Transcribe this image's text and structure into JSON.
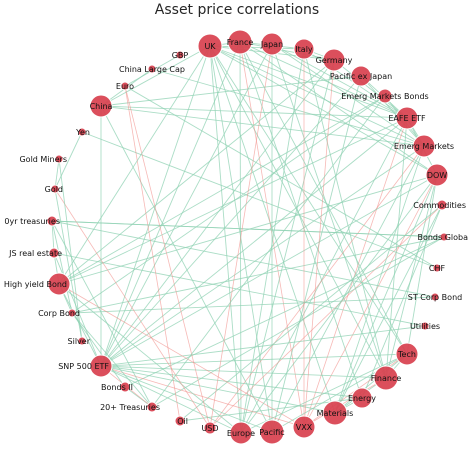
{
  "figure": {
    "title": "Asset price correlations",
    "colors": {
      "node": "#d9414f",
      "positive_edge": "#8fd1b3",
      "negative_edge": "#f08a85",
      "label": "#111111"
    }
  },
  "nodes": [
    {
      "id": "uk",
      "label": "UK"
    },
    {
      "id": "france",
      "label": "France"
    },
    {
      "id": "japan",
      "label": "Japan"
    },
    {
      "id": "italy",
      "label": "Italy"
    },
    {
      "id": "germany",
      "label": "Germany"
    },
    {
      "id": "pacific_ex_japan",
      "label": "Pacific ex Japan"
    },
    {
      "id": "emerg_markets_bonds",
      "label": "Emerg Markets Bonds"
    },
    {
      "id": "eafe_etf",
      "label": "EAFE ETF"
    },
    {
      "id": "emerg_markets",
      "label": "Emerg Markets"
    },
    {
      "id": "dow",
      "label": "DOW"
    },
    {
      "id": "commodities",
      "label": "Commodities"
    },
    {
      "id": "bonds_global",
      "label": "Bonds Globa"
    },
    {
      "id": "chf",
      "label": "CHF"
    },
    {
      "id": "st_corp_bond",
      "label": "ST Corp Bond"
    },
    {
      "id": "utilities",
      "label": "Utilities"
    },
    {
      "id": "tech",
      "label": "Tech"
    },
    {
      "id": "finance",
      "label": "Finance"
    },
    {
      "id": "energy",
      "label": "Energy"
    },
    {
      "id": "materials",
      "label": "Materials"
    },
    {
      "id": "vxx",
      "label": "VXX"
    },
    {
      "id": "pacific",
      "label": "Pacific"
    },
    {
      "id": "europe",
      "label": "Europe"
    },
    {
      "id": "usd",
      "label": "USD"
    },
    {
      "id": "oil",
      "label": "Oil"
    },
    {
      "id": "treasuries_20",
      "label": "20+ Treasuries"
    },
    {
      "id": "bonds_ii",
      "label": "Bonds II"
    },
    {
      "id": "snp500",
      "label": "SNP 500 ETF"
    },
    {
      "id": "silver",
      "label": "Silver"
    },
    {
      "id": "corp_bond",
      "label": "Corp Bond"
    },
    {
      "id": "high_yield",
      "label": "High yield Bond"
    },
    {
      "id": "us_real_estate",
      "label": "JS real estate"
    },
    {
      "id": "treasuries_10",
      "label": "0yr treasuries"
    },
    {
      "id": "gold",
      "label": "Gold"
    },
    {
      "id": "gold_miners",
      "label": "Gold Miners"
    },
    {
      "id": "yen",
      "label": "Yen"
    },
    {
      "id": "china",
      "label": "China"
    },
    {
      "id": "euro",
      "label": "Euro"
    },
    {
      "id": "china_large_cap",
      "label": "China Large Cap"
    },
    {
      "id": "gbp",
      "label": "GBP"
    }
  ],
  "edges": [
    [
      "uk",
      "france",
      "pos"
    ],
    [
      "uk",
      "germany",
      "pos"
    ],
    [
      "uk",
      "italy",
      "pos"
    ],
    [
      "uk",
      "eafe_etf",
      "pos"
    ],
    [
      "uk",
      "europe",
      "pos"
    ],
    [
      "uk",
      "snp500",
      "pos"
    ],
    [
      "uk",
      "dow",
      "pos"
    ],
    [
      "uk",
      "emerg_markets",
      "pos"
    ],
    [
      "uk",
      "pacific",
      "pos"
    ],
    [
      "uk",
      "finance",
      "pos"
    ],
    [
      "uk",
      "tech",
      "pos"
    ],
    [
      "uk",
      "materials",
      "pos"
    ],
    [
      "france",
      "germany",
      "pos"
    ],
    [
      "france",
      "italy",
      "pos"
    ],
    [
      "france",
      "eafe_etf",
      "pos"
    ],
    [
      "france",
      "europe",
      "pos"
    ],
    [
      "france",
      "snp500",
      "pos"
    ],
    [
      "france",
      "dow",
      "pos"
    ],
    [
      "france",
      "energy",
      "pos"
    ],
    [
      "france",
      "vxx",
      "neg"
    ],
    [
      "japan",
      "pacific",
      "pos"
    ],
    [
      "japan",
      "eafe_etf",
      "pos"
    ],
    [
      "japan",
      "snp500",
      "pos"
    ],
    [
      "japan",
      "emerg_markets",
      "pos"
    ],
    [
      "japan",
      "finance",
      "pos"
    ],
    [
      "italy",
      "germany",
      "pos"
    ],
    [
      "italy",
      "europe",
      "pos"
    ],
    [
      "italy",
      "eafe_etf",
      "pos"
    ],
    [
      "italy",
      "finance",
      "pos"
    ],
    [
      "germany",
      "europe",
      "pos"
    ],
    [
      "germany",
      "eafe_etf",
      "pos"
    ],
    [
      "germany",
      "snp500",
      "pos"
    ],
    [
      "germany",
      "high_yield",
      "pos"
    ],
    [
      "pacific_ex_japan",
      "emerg_markets",
      "pos"
    ],
    [
      "pacific_ex_japan",
      "pacific",
      "pos"
    ],
    [
      "pacific_ex_japan",
      "china",
      "pos"
    ],
    [
      "pacific_ex_japan",
      "eafe_etf",
      "pos"
    ],
    [
      "emerg_markets_bonds",
      "high_yield",
      "pos"
    ],
    [
      "emerg_markets_bonds",
      "emerg_markets",
      "pos"
    ],
    [
      "emerg_markets_bonds",
      "corp_bond",
      "pos"
    ],
    [
      "eafe_etf",
      "europe",
      "pos"
    ],
    [
      "eafe_etf",
      "snp500",
      "pos"
    ],
    [
      "eafe_etf",
      "dow",
      "pos"
    ],
    [
      "eafe_etf",
      "china",
      "pos"
    ],
    [
      "eafe_etf",
      "emerg_markets",
      "pos"
    ],
    [
      "eafe_etf",
      "high_yield",
      "pos"
    ],
    [
      "eafe_etf",
      "vxx",
      "neg"
    ],
    [
      "emerg_markets",
      "china",
      "pos"
    ],
    [
      "emerg_markets",
      "snp500",
      "pos"
    ],
    [
      "emerg_markets",
      "china_large_cap",
      "pos"
    ],
    [
      "emerg_markets",
      "pacific",
      "pos"
    ],
    [
      "emerg_markets",
      "usd",
      "neg"
    ],
    [
      "dow",
      "snp500",
      "pos"
    ],
    [
      "dow",
      "tech",
      "pos"
    ],
    [
      "dow",
      "finance",
      "pos"
    ],
    [
      "dow",
      "materials",
      "pos"
    ],
    [
      "dow",
      "high_yield",
      "pos"
    ],
    [
      "dow",
      "vxx",
      "neg"
    ],
    [
      "commodities",
      "energy",
      "pos"
    ],
    [
      "commodities",
      "oil",
      "pos"
    ],
    [
      "commodities",
      "materials",
      "pos"
    ],
    [
      "commodities",
      "usd",
      "neg"
    ],
    [
      "bonds_global",
      "treasuries_10",
      "pos"
    ],
    [
      "bonds_global",
      "corp_bond",
      "pos"
    ],
    [
      "bonds_global",
      "treasuries_20",
      "pos"
    ],
    [
      "bonds_global",
      "bonds_ii",
      "pos"
    ],
    [
      "chf",
      "euro",
      "pos"
    ],
    [
      "chf",
      "yen",
      "pos"
    ],
    [
      "st_corp_bond",
      "corp_bond",
      "pos"
    ],
    [
      "st_corp_bond",
      "treasuries_10",
      "pos"
    ],
    [
      "utilities",
      "us_real_estate",
      "pos"
    ],
    [
      "utilities",
      "snp500",
      "pos"
    ],
    [
      "tech",
      "snp500",
      "pos"
    ],
    [
      "tech",
      "finance",
      "pos"
    ],
    [
      "tech",
      "materials",
      "pos"
    ],
    [
      "tech",
      "vxx",
      "neg"
    ],
    [
      "finance",
      "snp500",
      "pos"
    ],
    [
      "finance",
      "materials",
      "pos"
    ],
    [
      "finance",
      "vxx",
      "neg"
    ],
    [
      "energy",
      "oil",
      "pos"
    ],
    [
      "energy",
      "materials",
      "pos"
    ],
    [
      "energy",
      "snp500",
      "pos"
    ],
    [
      "materials",
      "snp500",
      "pos"
    ],
    [
      "vxx",
      "snp500",
      "neg"
    ],
    [
      "vxx",
      "high_yield",
      "neg"
    ],
    [
      "pacific",
      "china",
      "pos"
    ],
    [
      "pacific",
      "snp500",
      "pos"
    ],
    [
      "europe",
      "snp500",
      "pos"
    ],
    [
      "europe",
      "high_yield",
      "pos"
    ],
    [
      "usd",
      "euro",
      "neg"
    ],
    [
      "usd",
      "gold",
      "neg"
    ],
    [
      "oil",
      "euro",
      "neg"
    ],
    [
      "treasuries_20",
      "treasuries_10",
      "pos"
    ],
    [
      "treasuries_20",
      "bonds_ii",
      "pos"
    ],
    [
      "treasuries_20",
      "snp500",
      "neg"
    ],
    [
      "treasuries_20",
      "corp_bond",
      "pos"
    ],
    [
      "bonds_ii",
      "corp_bond",
      "pos"
    ],
    [
      "snp500",
      "high_yield",
      "pos"
    ],
    [
      "snp500",
      "us_real_estate",
      "pos"
    ],
    [
      "snp500",
      "china",
      "pos"
    ],
    [
      "silver",
      "gold",
      "pos"
    ],
    [
      "silver",
      "gold_miners",
      "pos"
    ],
    [
      "corp_bond",
      "treasuries_10",
      "pos"
    ],
    [
      "corp_bond",
      "high_yield",
      "pos"
    ],
    [
      "high_yield",
      "us_real_estate",
      "pos"
    ],
    [
      "us_real_estate",
      "treasuries_10",
      "pos"
    ],
    [
      "gold",
      "gold_miners",
      "pos"
    ],
    [
      "gold",
      "yen",
      "pos"
    ],
    [
      "china",
      "china_large_cap",
      "pos"
    ],
    [
      "china",
      "uk",
      "pos"
    ],
    [
      "euro",
      "gbp",
      "pos"
    ],
    [
      "treasuries_10",
      "bonds_global",
      "pos"
    ],
    [
      "germany",
      "vxx",
      "neg"
    ],
    [
      "japan",
      "usd",
      "neg"
    ],
    [
      "italy",
      "vxx",
      "neg"
    ],
    [
      "pacific_ex_japan",
      "snp500",
      "pos"
    ],
    [
      "emerg_markets_bonds",
      "treasuries_20",
      "pos"
    ],
    [
      "materials",
      "emerg_markets",
      "pos"
    ],
    [
      "finance",
      "eafe_etf",
      "pos"
    ],
    [
      "europe",
      "tech",
      "pos"
    ],
    [
      "pacific",
      "tech",
      "pos"
    ],
    [
      "uk",
      "high_yield",
      "pos"
    ],
    [
      "france",
      "tech",
      "pos"
    ],
    [
      "dow",
      "europe",
      "pos"
    ]
  ]
}
